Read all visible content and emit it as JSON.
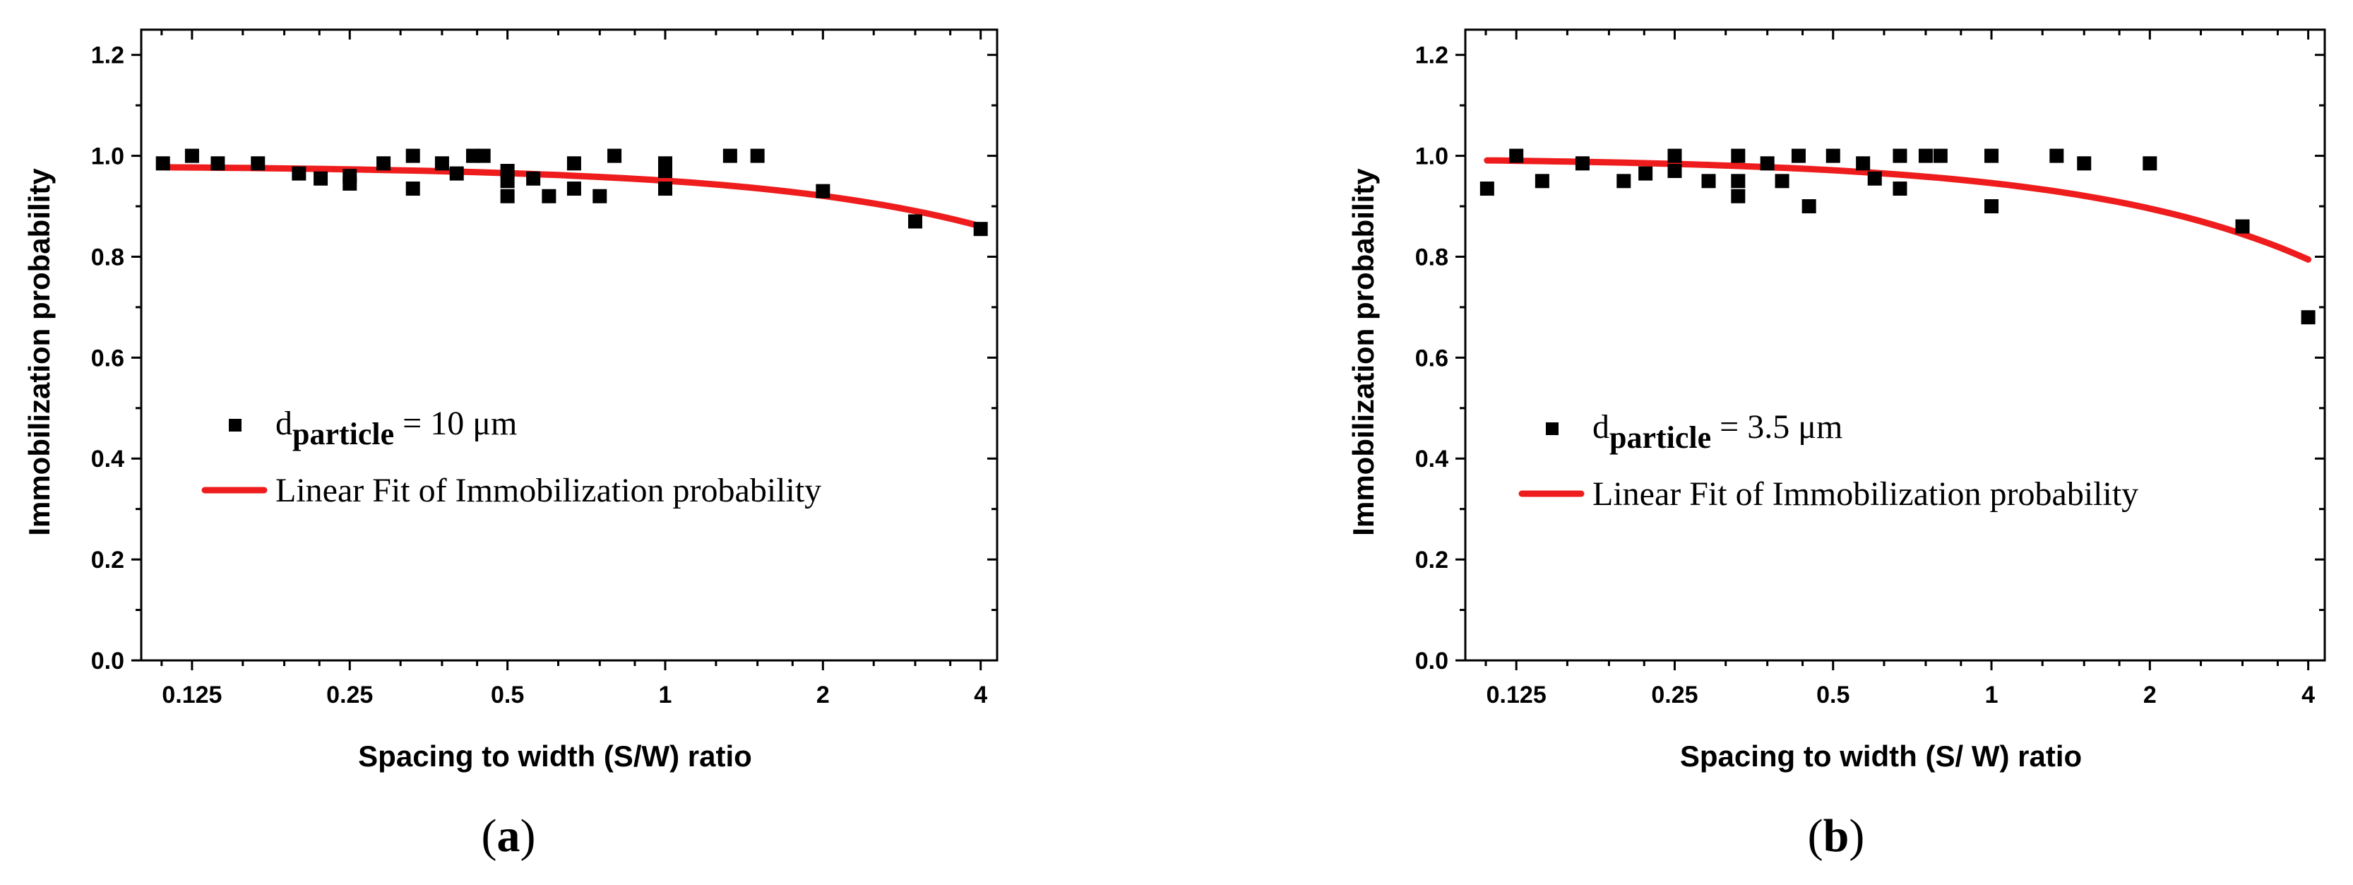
{
  "chart_data": [
    {
      "type": "scatter",
      "panel": "(a)",
      "panel_paren_open": "(",
      "panel_letter": "a",
      "panel_paren_close": ")",
      "xlabel": "Spacing to width (S/W) ratio",
      "ylabel": "Immobilization probability",
      "xscale": "log2",
      "xlim": [
        0.1,
        4.3
      ],
      "ylim": [
        0,
        1.25
      ],
      "xticks": [
        0.125,
        0.25,
        0.5,
        1,
        2,
        4
      ],
      "xtick_labels": [
        "0.125",
        "0.25",
        "0.5",
        "1",
        "2",
        "4"
      ],
      "yticks": [
        0.0,
        0.2,
        0.4,
        0.6,
        0.8,
        1.0,
        1.2
      ],
      "ytick_labels": [
        "0.0",
        "0.2",
        "0.4",
        "0.6",
        "0.8",
        "1.0",
        "1.2"
      ],
      "legend_position": "center-left",
      "series": [
        {
          "name": "d particle = 10 μm",
          "legend_prefix": "d",
          "legend_sub": "particle",
          "legend_suffix": " = 10 μm",
          "marker": "square",
          "color": "#000000",
          "x": [
            0.11,
            0.125,
            0.14,
            0.167,
            0.2,
            0.22,
            0.25,
            0.25,
            0.29,
            0.33,
            0.33,
            0.375,
            0.4,
            0.43,
            0.45,
            0.5,
            0.5,
            0.5,
            0.56,
            0.6,
            0.67,
            0.67,
            0.75,
            0.8,
            1,
            1,
            1,
            1.33,
            1.5,
            2,
            3,
            4
          ],
          "y": [
            0.985,
            1.0,
            0.985,
            0.985,
            0.965,
            0.955,
            0.96,
            0.945,
            0.985,
            1.0,
            0.935,
            0.985,
            0.965,
            1.0,
            1.0,
            0.97,
            0.95,
            0.92,
            0.955,
            0.92,
            0.985,
            0.935,
            0.92,
            1.0,
            0.985,
            0.97,
            0.935,
            1.0,
            1.0,
            0.93,
            0.87,
            0.855
          ]
        },
        {
          "name": "Linear Fit of Immobilization probability",
          "type": "line",
          "color": "#ee1c1c",
          "fit": {
            "slope": -0.03,
            "intercept": 0.9806
          },
          "x_range": [
            0.11,
            4
          ]
        }
      ]
    },
    {
      "type": "scatter",
      "panel": "(b)",
      "panel_paren_open": "(",
      "panel_letter": "b",
      "panel_paren_close": ")",
      "xlabel": "Spacing to width (S/ W) ratio",
      "ylabel": "Immobilization probability",
      "xscale": "log2",
      "xlim": [
        0.1,
        4.3
      ],
      "ylim": [
        0,
        1.25
      ],
      "xticks": [
        0.125,
        0.25,
        0.5,
        1,
        2,
        4
      ],
      "xtick_labels": [
        "0.125",
        "0.25",
        "0.5",
        "1",
        "2",
        "4"
      ],
      "yticks": [
        0.0,
        0.2,
        0.4,
        0.6,
        0.8,
        1.0,
        1.2
      ],
      "ytick_labels": [
        "0.0",
        "0.2",
        "0.4",
        "0.6",
        "0.8",
        "1.0",
        "1.2"
      ],
      "legend_position": "center-left",
      "series": [
        {
          "name": "d particle = 3.5 μm",
          "legend_prefix": "d",
          "legend_sub": "particle",
          "legend_suffix": " = 3.5 μm",
          "marker": "square",
          "color": "#000000",
          "x": [
            0.11,
            0.125,
            0.14,
            0.167,
            0.2,
            0.22,
            0.25,
            0.25,
            0.29,
            0.33,
            0.33,
            0.33,
            0.375,
            0.4,
            0.43,
            0.45,
            0.5,
            0.57,
            0.6,
            0.67,
            0.67,
            0.75,
            0.8,
            1,
            1,
            1.33,
            1.5,
            2,
            3,
            4
          ],
          "y": [
            0.935,
            1.0,
            0.95,
            0.985,
            0.95,
            0.965,
            1.0,
            0.97,
            0.95,
            1.0,
            0.95,
            0.92,
            0.985,
            0.95,
            1.0,
            0.9,
            1.0,
            0.985,
            0.955,
            1.0,
            0.935,
            1.0,
            1.0,
            1.0,
            0.9,
            1.0,
            0.985,
            0.985,
            0.86,
            0.68
          ]
        },
        {
          "name": "Linear Fit of Immobilization probability",
          "type": "line",
          "color": "#ee1c1c",
          "fit": {
            "slope": -0.0505,
            "intercept": 0.9965
          },
          "x_range": [
            0.11,
            4
          ]
        }
      ]
    }
  ]
}
